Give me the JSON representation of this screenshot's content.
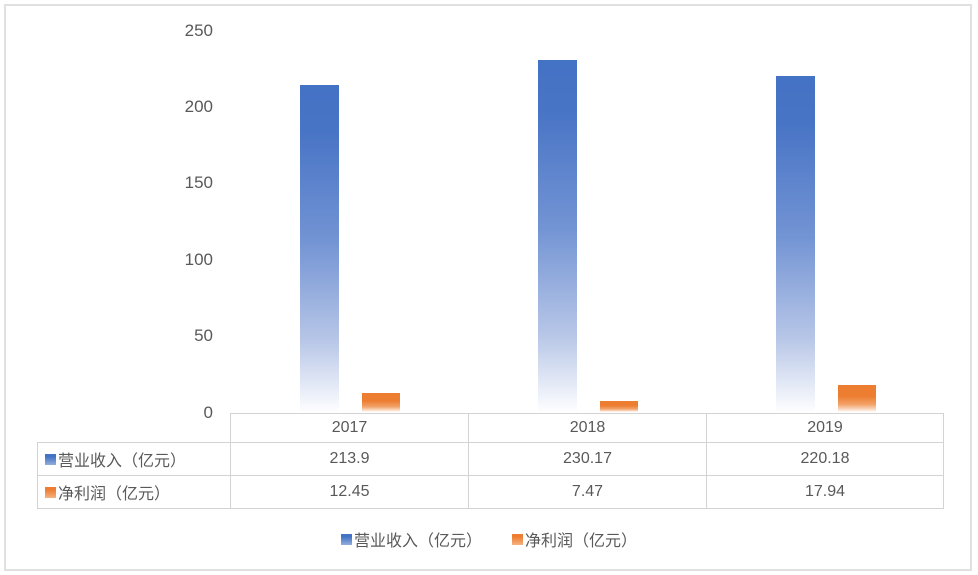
{
  "chart_data": {
    "type": "bar",
    "title": "",
    "categories": [
      "2017",
      "2018",
      "2019"
    ],
    "series": [
      {
        "name": "营业收入（亿元）",
        "color": "#4472C4",
        "values": [
          213.9,
          230.17,
          220.18
        ]
      },
      {
        "name": "净利润（亿元）",
        "color": "#ED7D31",
        "values": [
          12.45,
          7.47,
          17.94
        ]
      }
    ],
    "ylim": [
      0,
      250
    ],
    "yticks": [
      250,
      200,
      150,
      100,
      50,
      0
    ],
    "grid": false,
    "legend_position": "bottom",
    "data_table_shown": true
  },
  "colors": {
    "text": "#595959",
    "table_border": "#D3D3D3",
    "frame_border": "#E0E0E0",
    "series_blue": "#4472C4",
    "series_orange": "#ED7D31"
  }
}
